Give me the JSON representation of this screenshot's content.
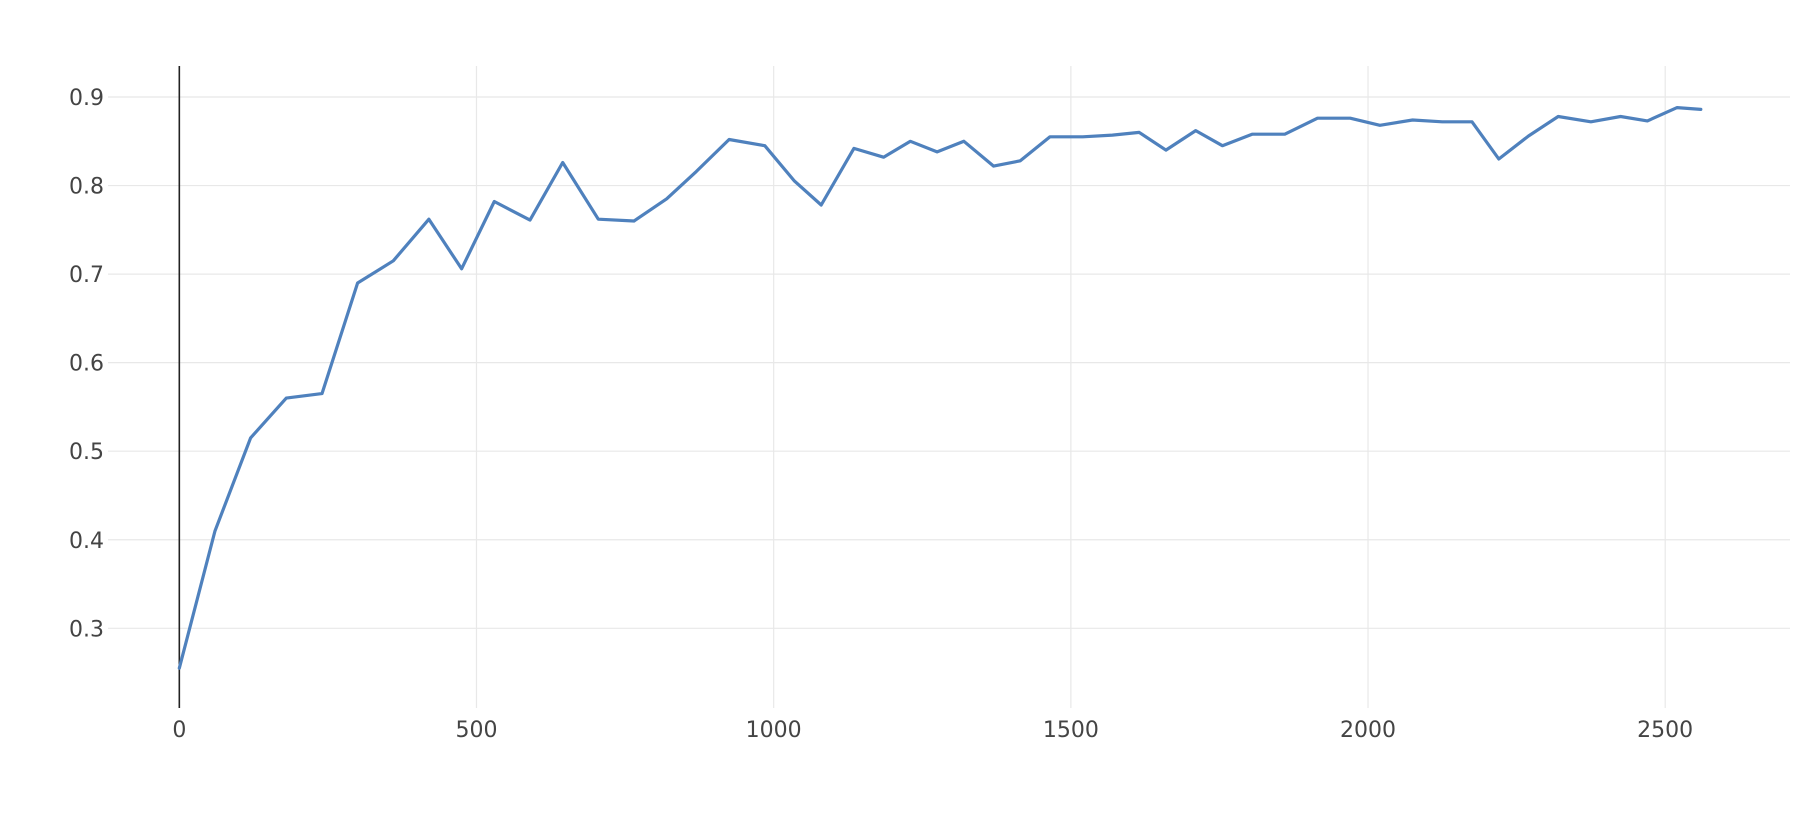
{
  "chart_data": {
    "type": "line",
    "title": "",
    "xlabel": "",
    "ylabel": "",
    "xlim": [
      -120,
      2710
    ],
    "ylim": [
      0.21,
      0.935
    ],
    "grid": true,
    "x_ticks": [
      0,
      500,
      1000,
      1500,
      2000,
      2500
    ],
    "x_tick_labels": [
      "0",
      "500",
      "1000",
      "1500",
      "2000",
      "2500"
    ],
    "y_ticks": [
      0.3,
      0.4,
      0.5,
      0.6,
      0.7,
      0.8,
      0.9
    ],
    "y_tick_labels": [
      "0.3",
      "0.4",
      "0.5",
      "0.6",
      "0.7",
      "0.8",
      "0.9"
    ],
    "colors": {
      "line": "#4f81bd",
      "grid": "#e8e8e8",
      "zero_line": "#222222",
      "tick_text": "#444444"
    },
    "series": [
      {
        "x": [
          0,
          60,
          120,
          180,
          240,
          300,
          360,
          420,
          475,
          530,
          590,
          645,
          705,
          765,
          820,
          870,
          925,
          985,
          1035,
          1080,
          1135,
          1185,
          1230,
          1275,
          1320,
          1370,
          1415,
          1465,
          1520,
          1570,
          1615,
          1660,
          1710,
          1755,
          1805,
          1860,
          1915,
          1970,
          2020,
          2075,
          2125,
          2175,
          2220,
          2270,
          2320,
          2375,
          2425,
          2470,
          2520,
          2560
        ],
        "y": [
          0.255,
          0.41,
          0.515,
          0.56,
          0.565,
          0.69,
          0.715,
          0.762,
          0.706,
          0.782,
          0.761,
          0.826,
          0.762,
          0.76,
          0.785,
          0.816,
          0.852,
          0.845,
          0.805,
          0.778,
          0.842,
          0.832,
          0.85,
          0.838,
          0.85,
          0.822,
          0.828,
          0.855,
          0.855,
          0.857,
          0.86,
          0.84,
          0.862,
          0.845,
          0.858,
          0.858,
          0.876,
          0.876,
          0.868,
          0.874,
          0.872,
          0.872,
          0.83,
          0.856,
          0.878,
          0.872,
          0.878,
          0.873,
          0.888,
          0.886
        ]
      }
    ]
  }
}
